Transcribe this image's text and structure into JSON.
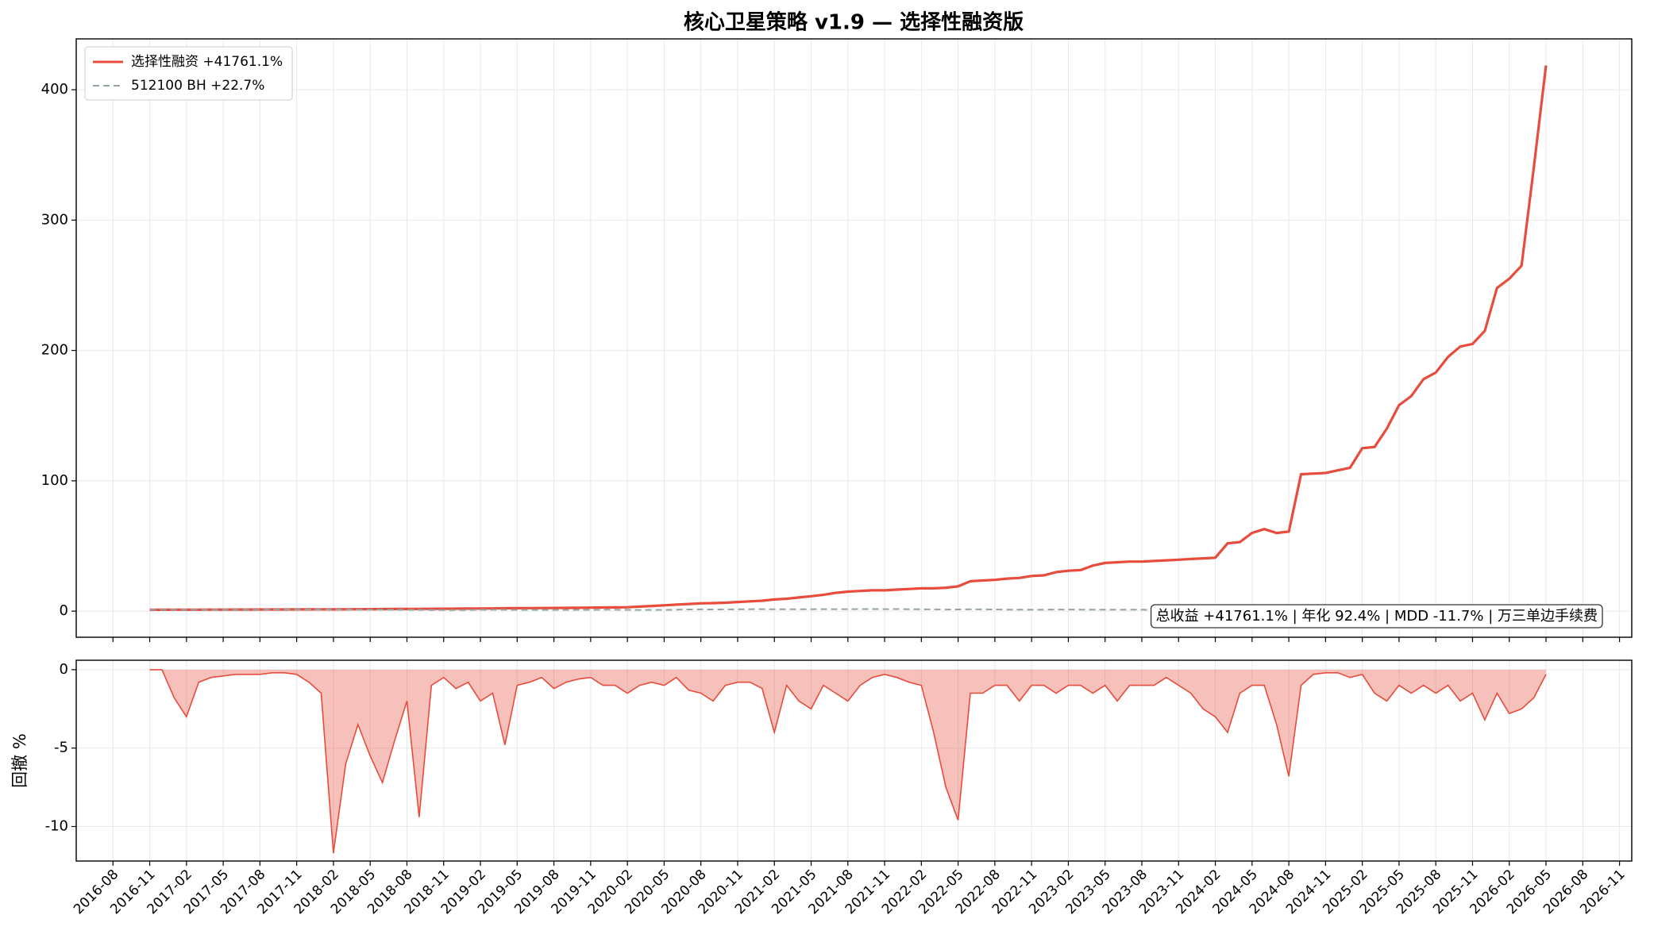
{
  "chart_data": [
    {
      "type": "line",
      "title": "核心卫星策略 v1.9 — 选择性融资版",
      "legend": "upper left",
      "grid": true,
      "annotation": "总收益 +41761.1% | 年化 92.4% | MDD -11.7% | 万三单边手续费",
      "x": [
        "2016-11",
        "2016-12",
        "2017-01",
        "2017-02",
        "2017-03",
        "2017-04",
        "2017-05",
        "2017-06",
        "2017-07",
        "2017-08",
        "2017-09",
        "2017-10",
        "2017-11",
        "2017-12",
        "2018-01",
        "2018-02",
        "2018-03",
        "2018-04",
        "2018-05",
        "2018-06",
        "2018-07",
        "2018-08",
        "2018-09",
        "2018-10",
        "2018-11",
        "2018-12",
        "2019-01",
        "2019-02",
        "2019-03",
        "2019-04",
        "2019-05",
        "2019-06",
        "2019-07",
        "2019-08",
        "2019-09",
        "2019-10",
        "2019-11",
        "2019-12",
        "2020-01",
        "2020-02",
        "2020-03",
        "2020-04",
        "2020-05",
        "2020-06",
        "2020-07",
        "2020-08",
        "2020-09",
        "2020-10",
        "2020-11",
        "2020-12",
        "2021-01",
        "2021-02",
        "2021-03",
        "2021-04",
        "2021-05",
        "2021-06",
        "2021-07",
        "2021-08",
        "2021-09",
        "2021-10",
        "2021-11",
        "2021-12",
        "2022-01",
        "2022-02",
        "2022-03",
        "2022-04",
        "2022-05",
        "2022-06",
        "2022-07",
        "2022-08",
        "2022-09",
        "2022-10",
        "2022-11",
        "2022-12",
        "2023-01",
        "2023-02",
        "2023-03",
        "2023-04",
        "2023-05",
        "2023-06",
        "2023-07",
        "2023-08",
        "2023-09",
        "2023-10",
        "2023-11",
        "2023-12",
        "2024-01",
        "2024-02",
        "2024-03",
        "2024-04",
        "2024-05",
        "2024-06",
        "2024-07",
        "2024-08",
        "2024-09",
        "2024-10",
        "2024-11",
        "2024-12",
        "2025-01",
        "2025-02",
        "2025-03",
        "2025-04",
        "2025-05",
        "2025-06",
        "2025-07",
        "2025-08",
        "2025-09",
        "2025-10",
        "2025-11",
        "2025-12",
        "2026-01",
        "2026-02",
        "2026-03",
        "2026-04",
        "2026-05"
      ],
      "series": [
        {
          "name": "选择性融资 +41761.1%",
          "color": "#e74c3c",
          "values": [
            1.0,
            1.05,
            1.1,
            1.12,
            1.15,
            1.18,
            1.2,
            1.22,
            1.25,
            1.28,
            1.3,
            1.33,
            1.35,
            1.38,
            1.4,
            1.35,
            1.45,
            1.5,
            1.55,
            1.6,
            1.65,
            1.7,
            1.75,
            1.8,
            1.85,
            1.9,
            1.95,
            2.0,
            2.1,
            2.2,
            2.3,
            2.35,
            2.4,
            2.45,
            2.5,
            2.6,
            2.7,
            2.8,
            2.9,
            3.0,
            3.5,
            4.0,
            4.5,
            5.0,
            5.5,
            6.0,
            6.2,
            6.5,
            7.0,
            7.5,
            8.0,
            9.0,
            9.5,
            10.5,
            11.5,
            12.5,
            14,
            15,
            15.5,
            16,
            16,
            16.5,
            17,
            17.5,
            17.5,
            18,
            19,
            23,
            23.5,
            24,
            25,
            25.5,
            27,
            27.5,
            30,
            31,
            31.5,
            35,
            37,
            37.5,
            38,
            38,
            38.5,
            39,
            39.5,
            40,
            40.5,
            41,
            52,
            53,
            60,
            63,
            60,
            61,
            105,
            105.5,
            106,
            108,
            110,
            125,
            126,
            140,
            158,
            165,
            178,
            183,
            195,
            203,
            205,
            215,
            248,
            255,
            265,
            340,
            418.6
          ]
        },
        {
          "name": "512100 BH +22.7%",
          "color": "#95a5a6",
          "dashed": true,
          "values": [
            1.0,
            1.02,
            1.05,
            1.08,
            1.1,
            1.08,
            1.1,
            1.15,
            1.2,
            1.25,
            1.3,
            1.32,
            1.35,
            1.3,
            1.38,
            1.28,
            1.25,
            1.2,
            1.15,
            1.1,
            1.05,
            1.02,
            0.98,
            0.85,
            0.88,
            0.82,
            0.9,
            1.05,
            1.1,
            1.05,
            0.98,
            1.0,
            1.02,
            1.0,
            1.0,
            1.02,
            1.05,
            1.1,
            1.12,
            1.05,
            0.95,
            1.0,
            1.02,
            1.1,
            1.3,
            1.35,
            1.3,
            1.35,
            1.4,
            1.5,
            1.55,
            1.45,
            1.4,
            1.45,
            1.5,
            1.55,
            1.5,
            1.55,
            1.6,
            1.6,
            1.58,
            1.6,
            1.5,
            1.45,
            1.35,
            1.25,
            1.3,
            1.4,
            1.35,
            1.3,
            1.2,
            1.1,
            1.15,
            1.2,
            1.25,
            1.22,
            1.2,
            1.2,
            1.15,
            1.15,
            1.18,
            1.1,
            1.08,
            1.05,
            1.05,
            1.03,
            0.95,
            1.0,
            1.02,
            1.05,
            1.08,
            1.05,
            1.02,
            1.0,
            1.15,
            1.2,
            1.18,
            1.15,
            1.12,
            1.1,
            1.12,
            1.1,
            1.08,
            1.1,
            1.12,
            1.15,
            1.2,
            1.18,
            1.2,
            1.22,
            1.2,
            1.22,
            1.25,
            1.23,
            1.227
          ]
        }
      ],
      "xlim": [
        "2016-05",
        "2026-12"
      ],
      "xticks": [
        "2016-08",
        "2016-11",
        "2017-02",
        "2017-05",
        "2017-08",
        "2017-11",
        "2018-02",
        "2018-05",
        "2018-08",
        "2018-11",
        "2019-02",
        "2019-05",
        "2019-08",
        "2019-11",
        "2020-02",
        "2020-05",
        "2020-08",
        "2020-11",
        "2021-02",
        "2021-05",
        "2021-08",
        "2021-11",
        "2022-02",
        "2022-05",
        "2022-08",
        "2022-11",
        "2023-02",
        "2023-05",
        "2023-08",
        "2023-11",
        "2024-02",
        "2024-05",
        "2024-08",
        "2024-11",
        "2025-02",
        "2025-05",
        "2025-08",
        "2025-11",
        "2026-02",
        "2026-05",
        "2026-08",
        "2026-11"
      ],
      "ylim": [
        -20,
        439
      ],
      "yticks": [
        0,
        100,
        200,
        300,
        400
      ]
    },
    {
      "type": "area",
      "ylabel": "回撤 %",
      "grid": true,
      "color": "#e74c3c",
      "x": [
        "2016-11",
        "2016-12",
        "2017-01",
        "2017-02",
        "2017-03",
        "2017-04",
        "2017-05",
        "2017-06",
        "2017-07",
        "2017-08",
        "2017-09",
        "2017-10",
        "2017-11",
        "2017-12",
        "2018-01",
        "2018-02",
        "2018-03",
        "2018-04",
        "2018-05",
        "2018-06",
        "2018-07",
        "2018-08",
        "2018-09",
        "2018-10",
        "2018-11",
        "2018-12",
        "2019-01",
        "2019-02",
        "2019-03",
        "2019-04",
        "2019-05",
        "2019-06",
        "2019-07",
        "2019-08",
        "2019-09",
        "2019-10",
        "2019-11",
        "2019-12",
        "2020-01",
        "2020-02",
        "2020-03",
        "2020-04",
        "2020-05",
        "2020-06",
        "2020-07",
        "2020-08",
        "2020-09",
        "2020-10",
        "2020-11",
        "2020-12",
        "2021-01",
        "2021-02",
        "2021-03",
        "2021-04",
        "2021-05",
        "2021-06",
        "2021-07",
        "2021-08",
        "2021-09",
        "2021-10",
        "2021-11",
        "2021-12",
        "2022-01",
        "2022-02",
        "2022-03",
        "2022-04",
        "2022-05",
        "2022-06",
        "2022-07",
        "2022-08",
        "2022-09",
        "2022-10",
        "2022-11",
        "2022-12",
        "2023-01",
        "2023-02",
        "2023-03",
        "2023-04",
        "2023-05",
        "2023-06",
        "2023-07",
        "2023-08",
        "2023-09",
        "2023-10",
        "2023-11",
        "2023-12",
        "2024-01",
        "2024-02",
        "2024-03",
        "2024-04",
        "2024-05",
        "2024-06",
        "2024-07",
        "2024-08",
        "2024-09",
        "2024-10",
        "2024-11",
        "2024-12",
        "2025-01",
        "2025-02",
        "2025-03",
        "2025-04",
        "2025-05",
        "2025-06",
        "2025-07",
        "2025-08",
        "2025-09",
        "2025-10",
        "2025-11",
        "2025-12",
        "2026-01",
        "2026-02",
        "2026-03",
        "2026-04",
        "2026-05"
      ],
      "values": [
        0,
        0,
        -1.8,
        -3.0,
        -0.8,
        -0.5,
        -0.4,
        -0.3,
        -0.3,
        -0.3,
        -0.2,
        -0.2,
        -0.3,
        -0.8,
        -1.5,
        -11.7,
        -6.0,
        -3.5,
        -5.5,
        -7.2,
        -4.5,
        -2.0,
        -9.4,
        -1.0,
        -0.5,
        -1.2,
        -0.8,
        -2.0,
        -1.5,
        -4.8,
        -1.0,
        -0.8,
        -0.5,
        -1.2,
        -0.8,
        -0.6,
        -0.5,
        -1.0,
        -1.0,
        -1.5,
        -1.0,
        -0.8,
        -1.0,
        -0.5,
        -1.3,
        -1.5,
        -2.0,
        -1.0,
        -0.8,
        -0.8,
        -1.2,
        -4.0,
        -1.0,
        -2.0,
        -2.5,
        -1.0,
        -1.5,
        -2.0,
        -1.0,
        -0.5,
        -0.3,
        -0.5,
        -0.8,
        -1.0,
        -4.0,
        -7.5,
        -9.6,
        -1.5,
        -1.5,
        -1.0,
        -1.0,
        -2.0,
        -1.0,
        -1.0,
        -1.5,
        -1.0,
        -1.0,
        -1.5,
        -1.0,
        -2.0,
        -1.0,
        -1.0,
        -1.0,
        -0.5,
        -1.0,
        -1.5,
        -2.5,
        -3.0,
        -4.0,
        -1.5,
        -1.0,
        -1.0,
        -3.5,
        -6.8,
        -1.0,
        -0.3,
        -0.2,
        -0.2,
        -0.5,
        -0.3,
        -1.5,
        -2.0,
        -1.0,
        -1.5,
        -1.0,
        -1.5,
        -1.0,
        -2.0,
        -1.5,
        -3.2,
        -1.5,
        -2.8,
        -2.5,
        -1.8,
        -0.3
      ],
      "xlim": [
        "2016-05",
        "2026-12"
      ],
      "xticks": [
        "2016-08",
        "2016-11",
        "2017-02",
        "2017-05",
        "2017-08",
        "2017-11",
        "2018-02",
        "2018-05",
        "2018-08",
        "2018-11",
        "2019-02",
        "2019-05",
        "2019-08",
        "2019-11",
        "2020-02",
        "2020-05",
        "2020-08",
        "2020-11",
        "2021-02",
        "2021-05",
        "2021-08",
        "2021-11",
        "2022-02",
        "2022-05",
        "2022-08",
        "2022-11",
        "2023-02",
        "2023-05",
        "2023-08",
        "2023-11",
        "2024-02",
        "2024-05",
        "2024-08",
        "2024-11",
        "2025-02",
        "2025-05",
        "2025-08",
        "2025-11",
        "2026-02",
        "2026-05",
        "2026-08",
        "2026-11"
      ],
      "ylim": [
        -12.2,
        0.6
      ],
      "yticks": [
        -10,
        -5,
        0
      ]
    }
  ]
}
